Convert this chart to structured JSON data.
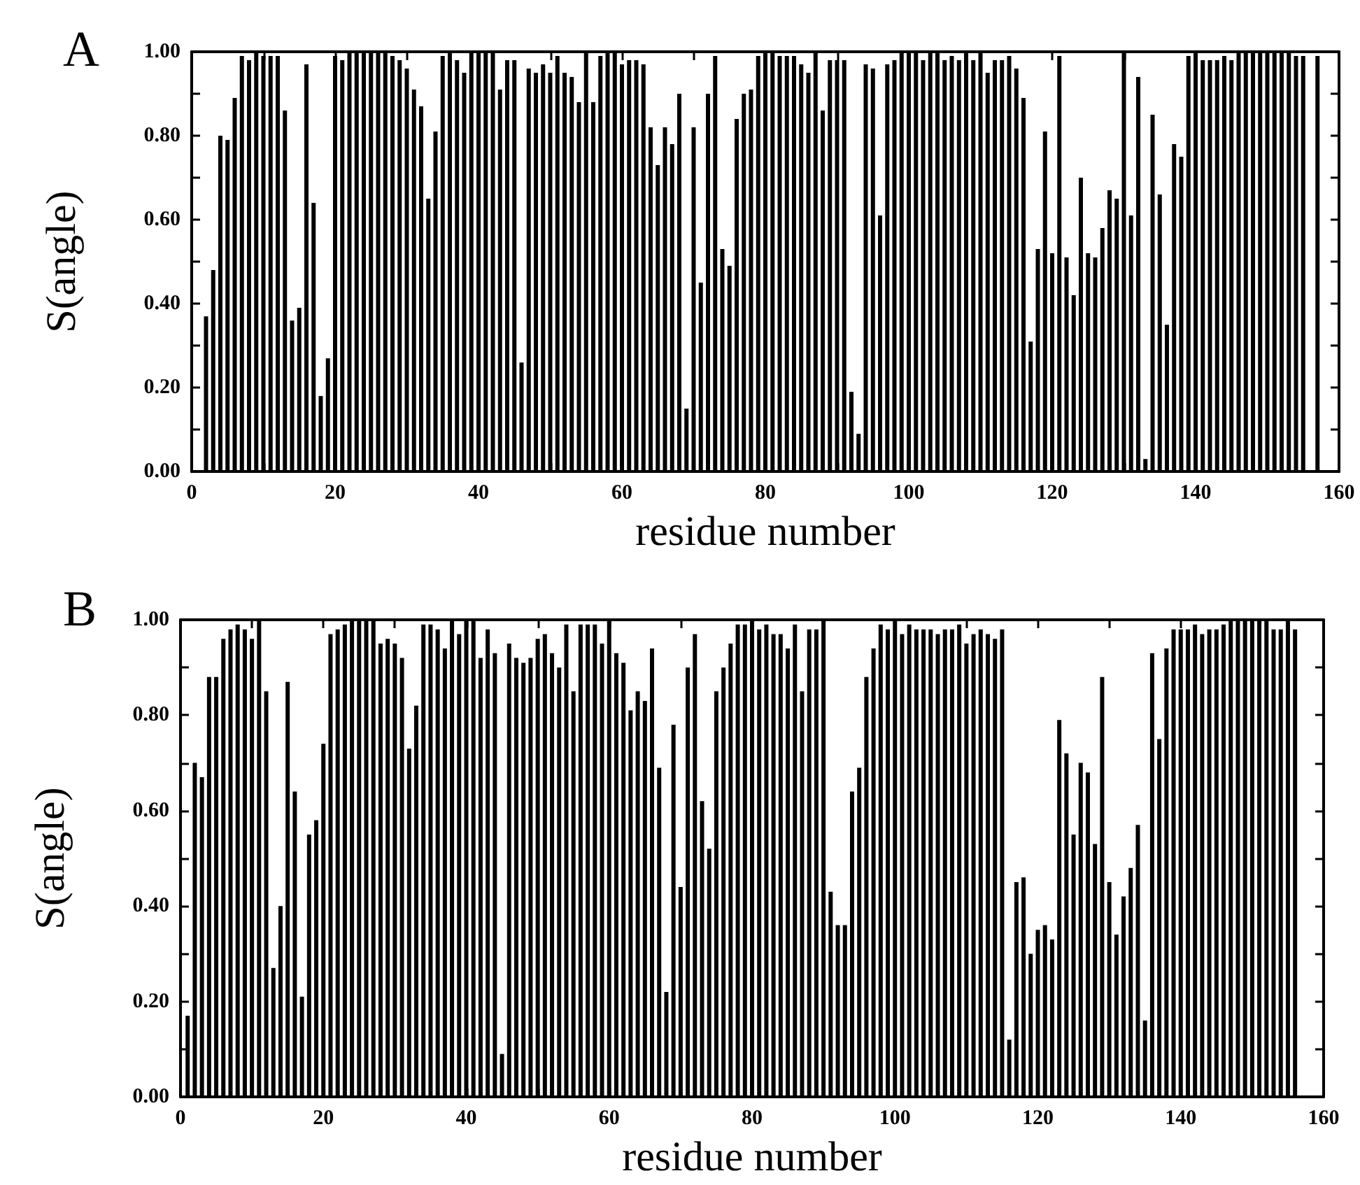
{
  "chart_data": [
    {
      "type": "bar",
      "title": "A",
      "xlabel": "residue number",
      "ylabel": "S(angle)",
      "color": "#000000",
      "x": [
        2,
        3,
        4,
        5,
        6,
        7,
        8,
        9,
        10,
        11,
        12,
        13,
        14,
        15,
        16,
        17,
        18,
        19,
        20,
        21,
        22,
        23,
        24,
        25,
        26,
        27,
        28,
        29,
        30,
        31,
        32,
        33,
        34,
        35,
        36,
        37,
        38,
        39,
        40,
        41,
        42,
        43,
        44,
        45,
        46,
        47,
        48,
        49,
        50,
        51,
        52,
        53,
        54,
        55,
        56,
        57,
        58,
        59,
        60,
        61,
        62,
        63,
        64,
        65,
        66,
        67,
        68,
        69,
        70,
        71,
        72,
        73,
        74,
        75,
        76,
        77,
        78,
        79,
        80,
        81,
        82,
        83,
        84,
        85,
        86,
        87,
        88,
        89,
        90,
        91,
        92,
        93,
        94,
        95,
        96,
        97,
        98,
        99,
        100,
        101,
        102,
        103,
        104,
        105,
        106,
        107,
        108,
        109,
        110,
        111,
        112,
        113,
        114,
        115,
        116,
        117,
        118,
        119,
        120,
        121,
        122,
        123,
        124,
        125,
        126,
        127,
        128,
        129,
        130,
        131,
        132,
        133,
        134,
        135,
        136,
        137,
        138,
        139,
        140,
        141,
        142,
        143,
        144,
        145,
        146,
        147,
        148,
        149,
        150,
        151,
        152,
        153,
        154,
        155,
        157
      ],
      "values": [
        0.37,
        0.48,
        0.8,
        0.79,
        0.89,
        0.99,
        0.98,
        1.0,
        0.99,
        0.99,
        0.99,
        0.86,
        0.36,
        0.39,
        0.97,
        0.64,
        0.18,
        0.27,
        0.99,
        0.98,
        1.0,
        1.0,
        1.0,
        1.0,
        1.0,
        1.0,
        0.99,
        0.98,
        0.96,
        0.91,
        0.87,
        0.65,
        0.81,
        0.99,
        1.0,
        0.98,
        0.95,
        1.0,
        1.0,
        1.0,
        1.0,
        0.91,
        0.98,
        0.98,
        0.26,
        0.96,
        0.95,
        0.97,
        0.95,
        0.99,
        0.95,
        0.94,
        0.88,
        1.0,
        0.88,
        0.99,
        1.0,
        1.0,
        0.97,
        0.98,
        0.98,
        0.97,
        0.82,
        0.73,
        0.82,
        0.78,
        0.9,
        0.15,
        0.82,
        0.45,
        0.9,
        0.99,
        0.53,
        0.49,
        0.84,
        0.9,
        0.91,
        0.99,
        1.0,
        1.0,
        0.99,
        0.99,
        0.99,
        0.97,
        0.95,
        1.0,
        0.86,
        0.98,
        0.98,
        0.98,
        0.19,
        0.09,
        0.97,
        0.96,
        0.61,
        0.97,
        0.98,
        1.0,
        1.0,
        1.0,
        0.98,
        1.0,
        1.0,
        0.98,
        0.99,
        0.98,
        1.0,
        0.98,
        1.0,
        0.95,
        0.98,
        0.98,
        0.99,
        0.96,
        0.89,
        0.31,
        0.53,
        0.81,
        0.52,
        0.99,
        0.51,
        0.42,
        0.7,
        0.52,
        0.51,
        0.58,
        0.67,
        0.65,
        1.0,
        0.61,
        0.94,
        0.03,
        0.85,
        0.66,
        0.35,
        0.78,
        0.75,
        0.99,
        1.0,
        0.98,
        0.98,
        0.98,
        0.99,
        0.98,
        1.0,
        1.0,
        1.0,
        1.0,
        1.0,
        1.0,
        1.0,
        1.0,
        0.99,
        0.99,
        0.99
      ],
      "xlim": [
        0,
        160
      ],
      "xticks": [
        0,
        {
          "value": 10,
          "label": null
        },
        20,
        {
          "value": 30,
          "label": null
        },
        40,
        {
          "value": 50,
          "label": null
        },
        60,
        {
          "value": 70,
          "label": null
        },
        80,
        {
          "value": 90,
          "label": null
        },
        100,
        {
          "value": 110,
          "label": null
        },
        120,
        {
          "value": 130,
          "label": null
        },
        140,
        {
          "value": 150,
          "label": null
        },
        160
      ],
      "ylim": [
        0,
        1
      ],
      "yticks": [
        {
          "value": 0,
          "label": "0.00"
        },
        {
          "value": 0.1,
          "label": null
        },
        {
          "value": 0.2,
          "label": "0.20"
        },
        {
          "value": 0.3,
          "label": null
        },
        {
          "value": 0.4,
          "label": "0.40"
        },
        {
          "value": 0.5,
          "label": null
        },
        {
          "value": 0.6,
          "label": "0.60"
        },
        {
          "value": 0.7,
          "label": null
        },
        {
          "value": 0.8,
          "label": "0.80"
        },
        {
          "value": 0.9,
          "label": null
        },
        {
          "value": 1,
          "label": "1.00"
        }
      ]
    },
    {
      "type": "bar",
      "title": "B",
      "xlabel": "residue number",
      "ylabel": "S(angle)",
      "color": "#000000",
      "x": [
        1,
        2,
        3,
        4,
        5,
        6,
        7,
        8,
        9,
        10,
        11,
        12,
        13,
        14,
        15,
        16,
        17,
        18,
        19,
        20,
        21,
        22,
        23,
        24,
        25,
        26,
        27,
        28,
        29,
        30,
        31,
        32,
        33,
        34,
        35,
        36,
        37,
        38,
        39,
        40,
        41,
        42,
        43,
        44,
        45,
        46,
        47,
        48,
        49,
        50,
        51,
        52,
        53,
        54,
        55,
        56,
        57,
        58,
        59,
        60,
        61,
        62,
        63,
        64,
        65,
        66,
        67,
        68,
        69,
        70,
        71,
        72,
        73,
        74,
        75,
        76,
        77,
        78,
        79,
        80,
        81,
        82,
        83,
        84,
        85,
        86,
        87,
        88,
        89,
        90,
        91,
        92,
        93,
        94,
        95,
        96,
        97,
        98,
        99,
        100,
        101,
        102,
        103,
        104,
        105,
        106,
        107,
        108,
        109,
        110,
        111,
        112,
        113,
        114,
        115,
        116,
        117,
        118,
        119,
        120,
        121,
        122,
        123,
        124,
        125,
        126,
        127,
        128,
        129,
        130,
        131,
        132,
        133,
        134,
        135,
        136,
        137,
        138,
        139,
        140,
        141,
        142,
        143,
        144,
        145,
        146,
        147,
        148,
        149,
        150,
        151,
        152,
        153,
        154,
        155,
        156
      ],
      "values": [
        0.17,
        0.7,
        0.67,
        0.88,
        0.88,
        0.96,
        0.98,
        0.99,
        0.98,
        0.96,
        1.0,
        0.85,
        0.27,
        0.4,
        0.87,
        0.64,
        0.21,
        0.55,
        0.58,
        0.74,
        0.97,
        0.98,
        0.99,
        1.0,
        1.0,
        1.0,
        1.0,
        0.95,
        0.96,
        0.95,
        0.92,
        0.73,
        0.82,
        0.99,
        0.99,
        0.98,
        0.94,
        1.0,
        0.97,
        1.0,
        1.0,
        0.92,
        0.98,
        0.93,
        0.09,
        0.95,
        0.92,
        0.91,
        0.92,
        0.96,
        0.97,
        0.93,
        0.9,
        0.99,
        0.85,
        0.99,
        0.99,
        0.99,
        0.95,
        1.0,
        0.93,
        0.91,
        0.81,
        0.85,
        0.83,
        0.94,
        0.69,
        0.22,
        0.78,
        0.44,
        0.9,
        0.97,
        0.62,
        0.52,
        0.85,
        0.9,
        0.95,
        0.99,
        0.99,
        1.0,
        0.98,
        0.99,
        0.97,
        0.97,
        0.94,
        0.99,
        0.85,
        0.98,
        0.98,
        1.0,
        0.43,
        0.36,
        0.36,
        0.64,
        0.69,
        0.88,
        0.94,
        0.99,
        0.98,
        1.0,
        0.97,
        0.99,
        0.98,
        0.98,
        0.98,
        0.97,
        0.98,
        0.98,
        0.99,
        0.95,
        0.97,
        0.98,
        0.97,
        0.96,
        0.98,
        0.12,
        0.45,
        0.46,
        0.3,
        0.35,
        0.36,
        0.33,
        0.79,
        0.72,
        0.55,
        0.7,
        0.68,
        0.53,
        0.88,
        0.45,
        0.34,
        0.42,
        0.48,
        0.57,
        0.16,
        0.93,
        0.75,
        0.94,
        0.98,
        0.98,
        0.98,
        0.99,
        0.97,
        0.98,
        0.98,
        0.99,
        1.0,
        1.0,
        1.0,
        1.0,
        1.0,
        1.0,
        0.98,
        0.98,
        1.0,
        0.98
      ],
      "xlim": [
        0,
        160
      ],
      "xticks": [
        0,
        {
          "value": 10,
          "label": null
        },
        20,
        {
          "value": 30,
          "label": null
        },
        40,
        {
          "value": 50,
          "label": null
        },
        60,
        {
          "value": 70,
          "label": null
        },
        80,
        {
          "value": 90,
          "label": null
        },
        100,
        {
          "value": 110,
          "label": null
        },
        120,
        {
          "value": 130,
          "label": null
        },
        140,
        {
          "value": 150,
          "label": null
        },
        160
      ],
      "ylim": [
        0,
        1
      ],
      "yticks": [
        {
          "value": 0,
          "label": "0.00"
        },
        {
          "value": 0.1,
          "label": null
        },
        {
          "value": 0.2,
          "label": "0.20"
        },
        {
          "value": 0.3,
          "label": null
        },
        {
          "value": 0.4,
          "label": "0.40"
        },
        {
          "value": 0.5,
          "label": null
        },
        {
          "value": 0.6,
          "label": "0.60"
        },
        {
          "value": 0.7,
          "label": null
        },
        {
          "value": 0.8,
          "label": "0.80"
        },
        {
          "value": 0.9,
          "label": null
        },
        {
          "value": 1,
          "label": "1.00"
        }
      ]
    }
  ]
}
